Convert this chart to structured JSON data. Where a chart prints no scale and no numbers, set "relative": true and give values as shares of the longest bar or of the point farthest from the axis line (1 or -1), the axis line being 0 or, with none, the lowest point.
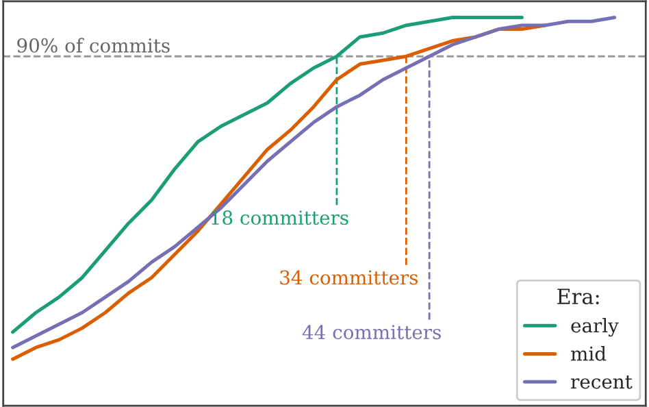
{
  "chart_data": {
    "type": "line",
    "relative": true,
    "legend_title": "Era:",
    "legend": "bottom right",
    "grid": false,
    "marker": "none",
    "line_style": "solid",
    "categories": [
      null,
      null,
      null,
      null,
      null,
      null,
      null,
      null,
      null,
      null,
      null,
      null,
      null,
      null,
      null,
      null,
      null,
      null,
      null,
      null,
      null,
      null,
      null,
      null,
      null,
      null,
      null,
      null
    ],
    "series": [
      {
        "name": "early",
        "color": "#1b9e77",
        "values": [
          0.19,
          0.24,
          0.28,
          0.33,
          0.4,
          0.47,
          0.53,
          0.61,
          0.68,
          0.72,
          0.75,
          0.78,
          0.83,
          0.87,
          0.9,
          0.95,
          0.96,
          0.98,
          0.99,
          1.0,
          1.0,
          1.0,
          1.0,
          null,
          null,
          null,
          null,
          null
        ]
      },
      {
        "name": "mid",
        "color": "#d95f02",
        "values": [
          0.12,
          0.15,
          0.17,
          0.2,
          0.24,
          0.29,
          0.33,
          0.39,
          0.45,
          0.52,
          0.59,
          0.66,
          0.71,
          0.77,
          0.84,
          0.88,
          0.89,
          0.9,
          0.92,
          0.94,
          0.95,
          0.97,
          0.97,
          0.98,
          null,
          null,
          null,
          null
        ]
      },
      {
        "name": "recent",
        "color": "#7570b3",
        "values": [
          0.15,
          0.18,
          0.21,
          0.24,
          0.28,
          0.32,
          0.37,
          0.41,
          0.46,
          0.51,
          0.57,
          0.63,
          0.68,
          0.73,
          0.77,
          0.8,
          0.84,
          0.87,
          0.9,
          0.93,
          0.95,
          0.97,
          0.98,
          0.98,
          0.99,
          0.99,
          1.0,
          null
        ]
      }
    ],
    "ref_lines": [
      {
        "axis": "y",
        "value": 0.9,
        "label": "90% of commits",
        "color": "#999999",
        "line_style": "dashed"
      }
    ],
    "annotations": [
      "18 committers",
      "34 committers",
      "44 committers"
    ]
  }
}
